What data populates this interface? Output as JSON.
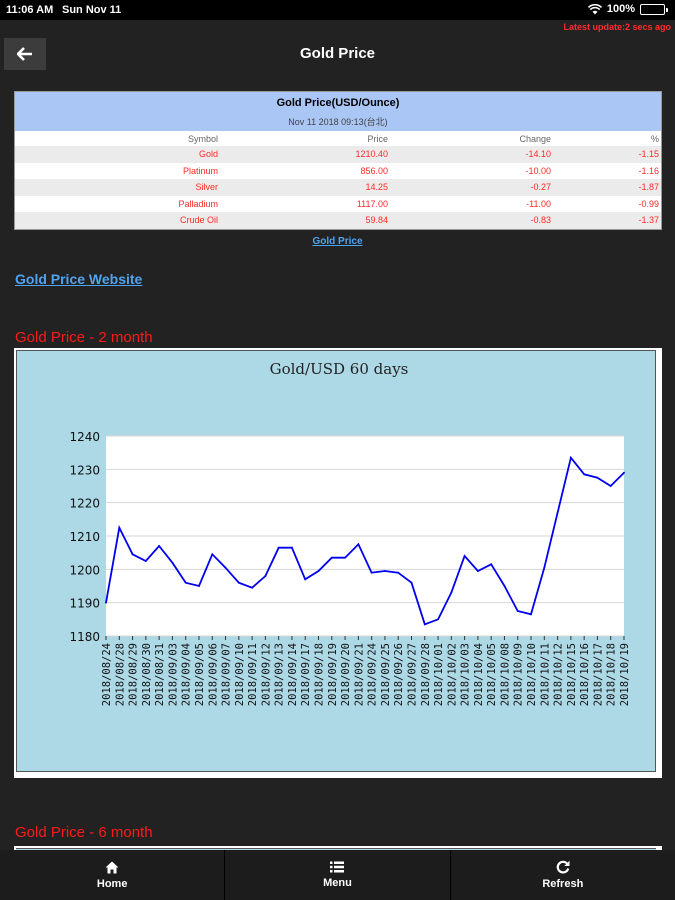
{
  "status_bar": {
    "time": "11:06 AM",
    "date": "Sun Nov 11",
    "battery": "100%"
  },
  "update_note": "Latest update:2 secs ago",
  "header": {
    "title": "Gold Price",
    "back_icon": "arrow-left-icon"
  },
  "price_table": {
    "title": "Gold Price(USD/Ounce)",
    "timestamp": "Nov 11 2018 09:13(台北)",
    "columns": [
      "Symbol",
      "Price",
      "Change",
      "%"
    ],
    "rows": [
      [
        "Gold",
        "1210.40",
        "-14.10",
        "-1.15"
      ],
      [
        "Platinum",
        "856.00",
        "-10.00",
        "-1.16"
      ],
      [
        "Silver",
        "14.25",
        "-0.27",
        "-1.87"
      ],
      [
        "Palladium",
        "1117.00",
        "-11.00",
        "-0.99"
      ],
      [
        "Crude Oil",
        "59.84",
        "-0.83",
        "-1.37"
      ]
    ]
  },
  "links": {
    "gold_price": "Gold Price",
    "website": "Gold Price Website"
  },
  "sections": {
    "two_month": "Gold Price - 2 month",
    "six_month": "Gold Price - 6 month"
  },
  "chart_data": {
    "type": "line",
    "title": "Gold/USD  60 days",
    "xlabel": "",
    "ylabel": "",
    "ylim": [
      1180,
      1240
    ],
    "yticks": [
      1180,
      1190,
      1200,
      1210,
      1220,
      1230,
      1240
    ],
    "grid": true,
    "line_color": "#0000ee",
    "x": [
      "2018/08/24",
      "2018/08/28",
      "2018/08/29",
      "2018/08/30",
      "2018/08/31",
      "2018/09/03",
      "2018/09/04",
      "2018/09/05",
      "2018/09/06",
      "2018/09/07",
      "2018/09/10",
      "2018/09/11",
      "2018/09/12",
      "2018/09/13",
      "2018/09/14",
      "2018/09/17",
      "2018/09/18",
      "2018/09/19",
      "2018/09/20",
      "2018/09/21",
      "2018/09/24",
      "2018/09/25",
      "2018/09/26",
      "2018/09/27",
      "2018/09/28",
      "2018/10/01",
      "2018/10/02",
      "2018/10/03",
      "2018/10/04",
      "2018/10/05",
      "2018/10/08",
      "2018/10/09",
      "2018/10/10",
      "2018/10/11",
      "2018/10/12",
      "2018/10/15",
      "2018/10/16",
      "2018/10/17",
      "2018/10/18",
      "2018/10/19"
    ],
    "series": [
      {
        "values": [
          1190,
          1212.5,
          1204.5,
          1202.5,
          1207,
          1202,
          1196,
          1195,
          1204.5,
          1200.5,
          1196,
          1194.5,
          1198,
          1206.5,
          1206.5,
          1197,
          1199.5,
          1203.5,
          1203.5,
          1207.5,
          1199,
          1199.5,
          1199,
          1196,
          1183.5,
          1185,
          1193,
          1204,
          1199.5,
          1201.5,
          1195,
          1187.5,
          1186.5,
          1200.5,
          1217,
          1233.5,
          1228.5,
          1227.5,
          1225,
          1229
        ]
      }
    ]
  },
  "bottom_nav": [
    {
      "label": "Home",
      "icon": "home-icon"
    },
    {
      "label": "Menu",
      "icon": "list-icon"
    },
    {
      "label": "Refresh",
      "icon": "refresh-icon"
    }
  ],
  "colors": {
    "accent_red": "#ff1a1a",
    "link_blue": "#4fa3f0",
    "table_header_bg": "#a9c6f5",
    "chart_bg": "#add8e6"
  }
}
